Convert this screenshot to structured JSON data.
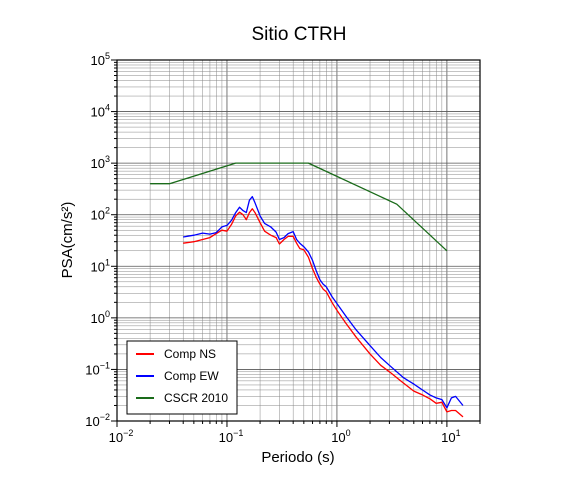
{
  "chart_data": {
    "type": "line",
    "title": "Sitio CTRH",
    "xlabel": "Periodo (s)",
    "ylabel": "PSA(cm/s²)",
    "xscale": "log",
    "yscale": "log",
    "xlim": [
      0.01,
      20
    ],
    "ylim": [
      0.01,
      100000
    ],
    "grid": true,
    "legend_position": "bottom-left",
    "x_ticks": [
      {
        "value": 0.01,
        "base": "10",
        "exp": "−2"
      },
      {
        "value": 0.1,
        "base": "10",
        "exp": "−1"
      },
      {
        "value": 1,
        "base": "10",
        "exp": "0"
      },
      {
        "value": 10,
        "base": "10",
        "exp": "1"
      }
    ],
    "y_ticks": [
      {
        "value": 0.01,
        "base": "10",
        "exp": "−2"
      },
      {
        "value": 0.1,
        "base": "10",
        "exp": "−1"
      },
      {
        "value": 1,
        "base": "10",
        "exp": "0"
      },
      {
        "value": 10,
        "base": "10",
        "exp": "1"
      },
      {
        "value": 100,
        "base": "10",
        "exp": "2"
      },
      {
        "value": 1000,
        "base": "10",
        "exp": "3"
      },
      {
        "value": 10000,
        "base": "10",
        "exp": "4"
      },
      {
        "value": 100000,
        "base": "10",
        "exp": "5"
      }
    ],
    "series": [
      {
        "name": "Comp NS",
        "color": "#ff0000",
        "x": [
          0.04,
          0.05,
          0.06,
          0.07,
          0.08,
          0.09,
          0.1,
          0.11,
          0.12,
          0.13,
          0.14,
          0.15,
          0.16,
          0.17,
          0.18,
          0.2,
          0.22,
          0.25,
          0.28,
          0.3,
          0.33,
          0.36,
          0.4,
          0.43,
          0.46,
          0.5,
          0.55,
          0.6,
          0.65,
          0.7,
          0.75,
          0.8,
          0.9,
          1.0,
          1.2,
          1.5,
          2.0,
          2.5,
          3.0,
          4.0,
          5.0,
          6.0,
          7.0,
          8.0,
          9.0,
          10.0,
          11.0,
          12.0,
          14.0
        ],
        "y": [
          28,
          30,
          33,
          36,
          43,
          50,
          48,
          65,
          95,
          112,
          100,
          80,
          110,
          130,
          110,
          70,
          48,
          40,
          36,
          27,
          33,
          38,
          38,
          28,
          22,
          21,
          15,
          9,
          6,
          4.5,
          3.6,
          3.2,
          2.0,
          1.4,
          0.8,
          0.42,
          0.2,
          0.12,
          0.09,
          0.055,
          0.038,
          0.032,
          0.027,
          0.022,
          0.023,
          0.015,
          0.016,
          0.016,
          0.012
        ]
      },
      {
        "name": "Comp EW",
        "color": "#0000ff",
        "x": [
          0.04,
          0.05,
          0.06,
          0.07,
          0.08,
          0.09,
          0.1,
          0.11,
          0.12,
          0.13,
          0.14,
          0.15,
          0.16,
          0.17,
          0.18,
          0.2,
          0.22,
          0.25,
          0.28,
          0.3,
          0.33,
          0.36,
          0.4,
          0.43,
          0.46,
          0.5,
          0.55,
          0.6,
          0.65,
          0.7,
          0.75,
          0.8,
          0.9,
          1.0,
          1.2,
          1.5,
          2.0,
          2.5,
          3.0,
          4.0,
          5.0,
          6.0,
          7.0,
          8.0,
          9.0,
          10.0,
          11.0,
          12.0,
          14.0
        ],
        "y": [
          37,
          40,
          44,
          42,
          45,
          58,
          62,
          78,
          110,
          140,
          120,
          110,
          190,
          225,
          170,
          95,
          68,
          58,
          46,
          33,
          36,
          43,
          47,
          33,
          28,
          24,
          19,
          13,
          8,
          5.5,
          4.5,
          4.0,
          2.6,
          1.9,
          1.1,
          0.58,
          0.29,
          0.17,
          0.12,
          0.07,
          0.052,
          0.04,
          0.032,
          0.028,
          0.026,
          0.018,
          0.028,
          0.03,
          0.02
        ]
      },
      {
        "name": "CSCR 2010",
        "color": "#1a6b1a",
        "x": [
          0.02,
          0.03,
          0.12,
          0.55,
          3.5,
          10
        ],
        "y": [
          400,
          400,
          1000,
          1000,
          160,
          20
        ]
      }
    ]
  }
}
